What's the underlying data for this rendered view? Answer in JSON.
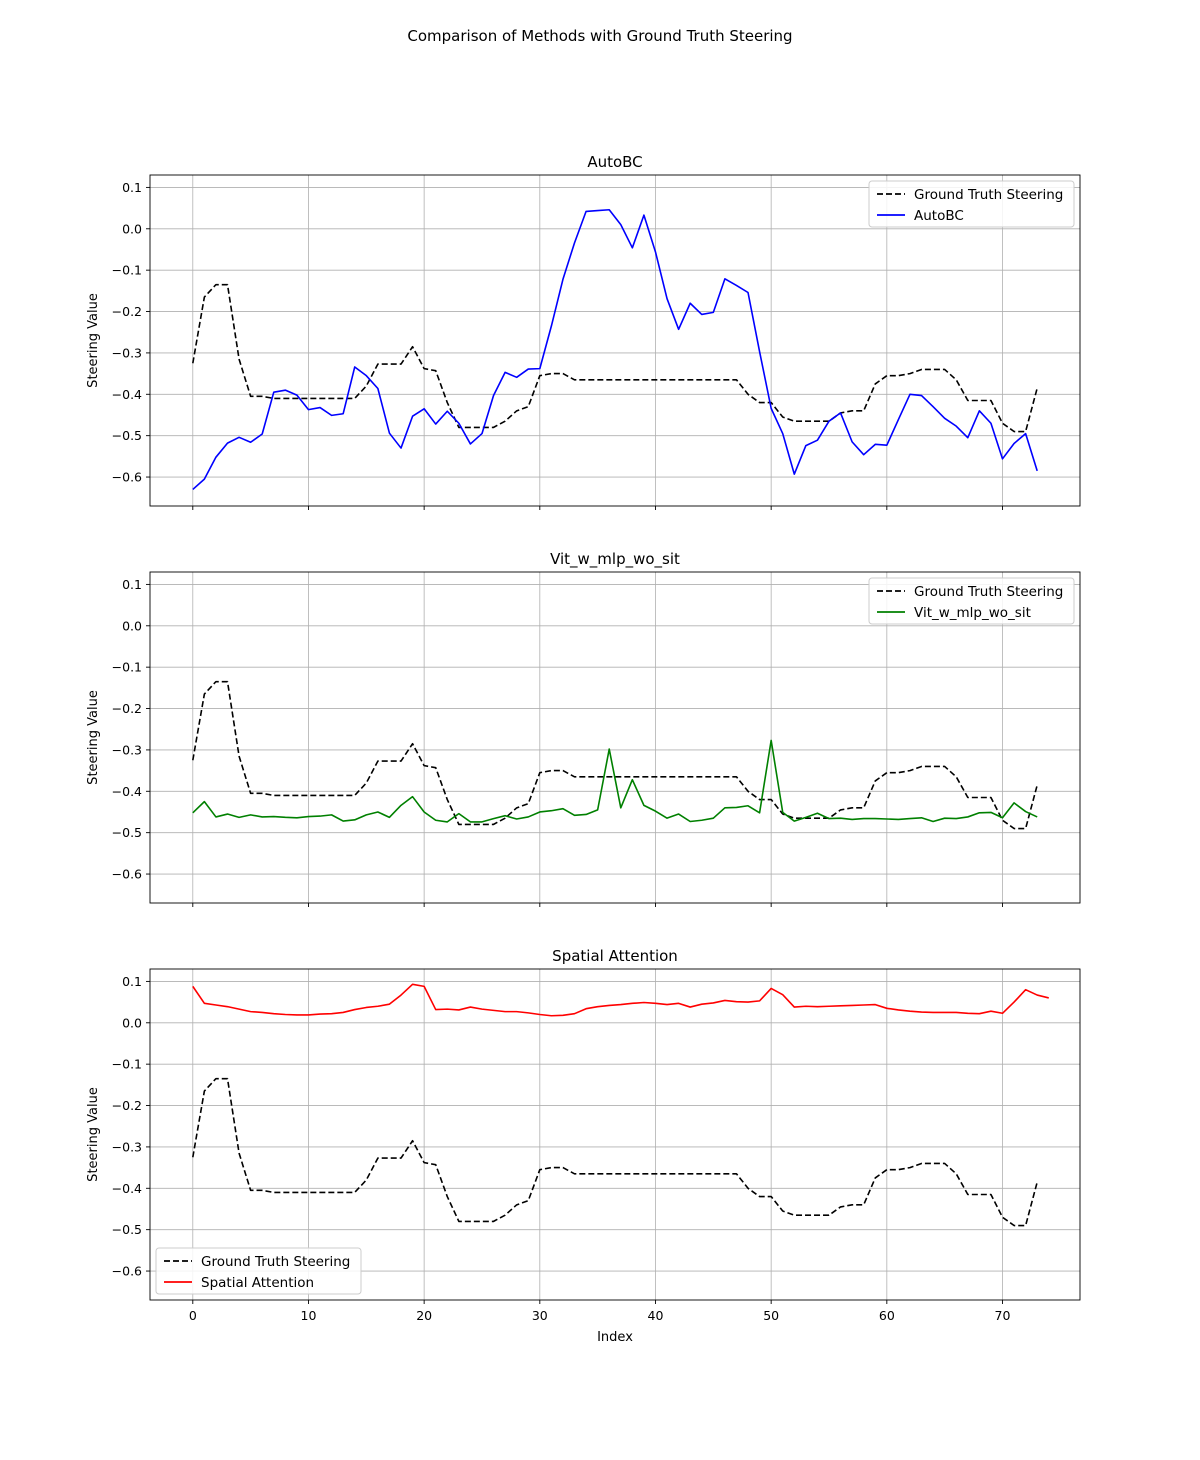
{
  "figure_title": "Comparison of Methods with Ground Truth Steering",
  "chart_data": [
    {
      "type": "line",
      "title": "AutoBC",
      "xlabel": "",
      "ylabel": "Steering Value",
      "xlim": [
        -3.7,
        76.7
      ],
      "ylim": [
        -0.67,
        0.13
      ],
      "xticks": [
        0,
        10,
        20,
        30,
        40,
        50,
        60,
        70
      ],
      "yticks": [
        0.1,
        0.0,
        -0.1,
        -0.2,
        -0.3,
        -0.4,
        -0.5,
        -0.6
      ],
      "ytick_labels": [
        "0.1",
        "0.0",
        "−0.1",
        "−0.2",
        "−0.3",
        "−0.4",
        "−0.5",
        "−0.6"
      ],
      "grid": true,
      "legend_position": "top-right",
      "series": [
        {
          "name": "Ground Truth Steering",
          "color": "#000000",
          "style": "dashed",
          "values": [
            -0.325,
            -0.165,
            -0.135,
            -0.135,
            -0.315,
            -0.405,
            -0.405,
            -0.41,
            -0.41,
            -0.41,
            -0.41,
            -0.41,
            -0.41,
            -0.41,
            -0.41,
            -0.38,
            -0.327,
            -0.327,
            -0.327,
            -0.285,
            -0.338,
            -0.343,
            -0.42,
            -0.48,
            -0.48,
            -0.48,
            -0.48,
            -0.465,
            -0.44,
            -0.43,
            -0.355,
            -0.35,
            -0.35,
            -0.365,
            -0.365,
            -0.365,
            -0.365,
            -0.365,
            -0.365,
            -0.365,
            -0.365,
            -0.365,
            -0.365,
            -0.365,
            -0.365,
            -0.365,
            -0.365,
            -0.365,
            -0.4,
            -0.42,
            -0.42,
            -0.455,
            -0.465,
            -0.465,
            -0.465,
            -0.465,
            -0.445,
            -0.44,
            -0.44,
            -0.375,
            -0.355,
            -0.355,
            -0.35,
            -0.34,
            -0.34,
            -0.34,
            -0.365,
            -0.415,
            -0.415,
            -0.415,
            -0.47,
            -0.49,
            -0.49,
            -0.385
          ]
        },
        {
          "name": "AutoBC",
          "color": "#0000ff",
          "style": "solid",
          "values": [
            -0.63,
            -0.605,
            -0.552,
            -0.518,
            -0.504,
            -0.516,
            -0.496,
            -0.395,
            -0.39,
            -0.402,
            -0.437,
            -0.432,
            -0.451,
            -0.447,
            -0.334,
            -0.355,
            -0.386,
            -0.494,
            -0.53,
            -0.453,
            -0.435,
            -0.472,
            -0.441,
            -0.47,
            -0.52,
            -0.495,
            -0.403,
            -0.347,
            -0.359,
            -0.339,
            -0.338,
            -0.235,
            -0.122,
            -0.034,
            0.042,
            0.044,
            0.046,
            0.01,
            -0.046,
            0.033,
            -0.056,
            -0.169,
            -0.243,
            -0.18,
            -0.207,
            -0.202,
            -0.121,
            -0.137,
            -0.154,
            -0.297,
            -0.434,
            -0.495,
            -0.593,
            -0.524,
            -0.511,
            -0.465,
            -0.445,
            -0.515,
            -0.546,
            -0.521,
            -0.523,
            -0.461,
            -0.4,
            -0.403,
            -0.43,
            -0.458,
            -0.477,
            -0.505,
            -0.44,
            -0.47,
            -0.556,
            -0.519,
            -0.495,
            -0.585
          ]
        }
      ]
    },
    {
      "type": "line",
      "title": "Vit_w_mlp_wo_sit",
      "xlabel": "",
      "ylabel": "Steering Value",
      "xlim": [
        -3.7,
        76.7
      ],
      "ylim": [
        -0.67,
        0.13
      ],
      "xticks": [
        0,
        10,
        20,
        30,
        40,
        50,
        60,
        70
      ],
      "yticks": [
        0.1,
        0.0,
        -0.1,
        -0.2,
        -0.3,
        -0.4,
        -0.5,
        -0.6
      ],
      "ytick_labels": [
        "0.1",
        "0.0",
        "−0.1",
        "−0.2",
        "−0.3",
        "−0.4",
        "−0.5",
        "−0.6"
      ],
      "grid": true,
      "legend_position": "top-right",
      "series": [
        {
          "name": "Ground Truth Steering",
          "color": "#000000",
          "style": "dashed",
          "values": [
            -0.325,
            -0.165,
            -0.135,
            -0.135,
            -0.315,
            -0.405,
            -0.405,
            -0.41,
            -0.41,
            -0.41,
            -0.41,
            -0.41,
            -0.41,
            -0.41,
            -0.41,
            -0.38,
            -0.327,
            -0.327,
            -0.327,
            -0.285,
            -0.338,
            -0.343,
            -0.42,
            -0.48,
            -0.48,
            -0.48,
            -0.48,
            -0.465,
            -0.44,
            -0.43,
            -0.355,
            -0.35,
            -0.35,
            -0.365,
            -0.365,
            -0.365,
            -0.365,
            -0.365,
            -0.365,
            -0.365,
            -0.365,
            -0.365,
            -0.365,
            -0.365,
            -0.365,
            -0.365,
            -0.365,
            -0.365,
            -0.4,
            -0.42,
            -0.42,
            -0.455,
            -0.465,
            -0.465,
            -0.465,
            -0.465,
            -0.445,
            -0.44,
            -0.44,
            -0.375,
            -0.355,
            -0.355,
            -0.35,
            -0.34,
            -0.34,
            -0.34,
            -0.365,
            -0.415,
            -0.415,
            -0.415,
            -0.47,
            -0.49,
            -0.49,
            -0.385
          ]
        },
        {
          "name": "Vit_w_mlp_wo_sit",
          "color": "#008000",
          "style": "solid",
          "values": [
            -0.452,
            -0.425,
            -0.462,
            -0.455,
            -0.463,
            -0.457,
            -0.462,
            -0.461,
            -0.463,
            -0.464,
            -0.461,
            -0.46,
            -0.457,
            -0.472,
            -0.469,
            -0.457,
            -0.45,
            -0.463,
            -0.434,
            -0.413,
            -0.45,
            -0.47,
            -0.474,
            -0.454,
            -0.474,
            -0.474,
            -0.466,
            -0.459,
            -0.467,
            -0.462,
            -0.45,
            -0.447,
            -0.442,
            -0.458,
            -0.456,
            -0.445,
            -0.298,
            -0.44,
            -0.372,
            -0.434,
            -0.448,
            -0.465,
            -0.455,
            -0.473,
            -0.47,
            -0.465,
            -0.44,
            -0.439,
            -0.435,
            -0.452,
            -0.277,
            -0.451,
            -0.472,
            -0.463,
            -0.453,
            -0.466,
            -0.465,
            -0.468,
            -0.466,
            -0.466,
            -0.467,
            -0.468,
            -0.466,
            -0.464,
            -0.473,
            -0.465,
            -0.466,
            -0.462,
            -0.452,
            -0.451,
            -0.464,
            -0.428,
            -0.449,
            -0.462
          ]
        }
      ]
    },
    {
      "type": "line",
      "title": "Spatial Attention",
      "xlabel": "Index",
      "ylabel": "Steering Value",
      "xlim": [
        -3.7,
        76.7
      ],
      "ylim": [
        -0.67,
        0.13
      ],
      "xticks": [
        0,
        10,
        20,
        30,
        40,
        50,
        60,
        70
      ],
      "yticks": [
        0.1,
        0.0,
        -0.1,
        -0.2,
        -0.3,
        -0.4,
        -0.5,
        -0.6
      ],
      "ytick_labels": [
        "0.1",
        "0.0",
        "−0.1",
        "−0.2",
        "−0.3",
        "−0.4",
        "−0.5",
        "−0.6"
      ],
      "grid": true,
      "legend_position": "bottom-left",
      "series": [
        {
          "name": "Ground Truth Steering",
          "color": "#000000",
          "style": "dashed",
          "values": [
            -0.325,
            -0.165,
            -0.135,
            -0.135,
            -0.315,
            -0.405,
            -0.405,
            -0.41,
            -0.41,
            -0.41,
            -0.41,
            -0.41,
            -0.41,
            -0.41,
            -0.41,
            -0.38,
            -0.327,
            -0.327,
            -0.327,
            -0.285,
            -0.338,
            -0.343,
            -0.42,
            -0.48,
            -0.48,
            -0.48,
            -0.48,
            -0.465,
            -0.44,
            -0.43,
            -0.355,
            -0.35,
            -0.35,
            -0.365,
            -0.365,
            -0.365,
            -0.365,
            -0.365,
            -0.365,
            -0.365,
            -0.365,
            -0.365,
            -0.365,
            -0.365,
            -0.365,
            -0.365,
            -0.365,
            -0.365,
            -0.4,
            -0.42,
            -0.42,
            -0.455,
            -0.465,
            -0.465,
            -0.465,
            -0.465,
            -0.445,
            -0.44,
            -0.44,
            -0.375,
            -0.355,
            -0.355,
            -0.35,
            -0.34,
            -0.34,
            -0.34,
            -0.365,
            -0.415,
            -0.415,
            -0.415,
            -0.47,
            -0.49,
            -0.49,
            -0.385
          ]
        },
        {
          "name": "Spatial Attention",
          "color": "#ff0000",
          "style": "solid",
          "values": [
            0.088,
            0.047,
            0.043,
            0.039,
            0.033,
            0.027,
            0.025,
            0.022,
            0.02,
            0.019,
            0.019,
            0.021,
            0.022,
            0.025,
            0.032,
            0.037,
            0.04,
            0.045,
            0.067,
            0.093,
            0.088,
            0.032,
            0.033,
            0.031,
            0.038,
            0.033,
            0.03,
            0.027,
            0.027,
            0.024,
            0.02,
            0.017,
            0.018,
            0.022,
            0.034,
            0.039,
            0.042,
            0.044,
            0.047,
            0.049,
            0.047,
            0.044,
            0.047,
            0.038,
            0.045,
            0.048,
            0.054,
            0.051,
            0.05,
            0.053,
            0.083,
            0.068,
            0.038,
            0.04,
            0.039,
            0.04,
            0.041,
            0.042,
            0.043,
            0.044,
            0.035,
            0.031,
            0.028,
            0.026,
            0.025,
            0.025,
            0.025,
            0.023,
            0.022,
            0.028,
            0.023,
            0.05,
            0.08,
            0.067,
            0.06
          ]
        }
      ]
    }
  ]
}
